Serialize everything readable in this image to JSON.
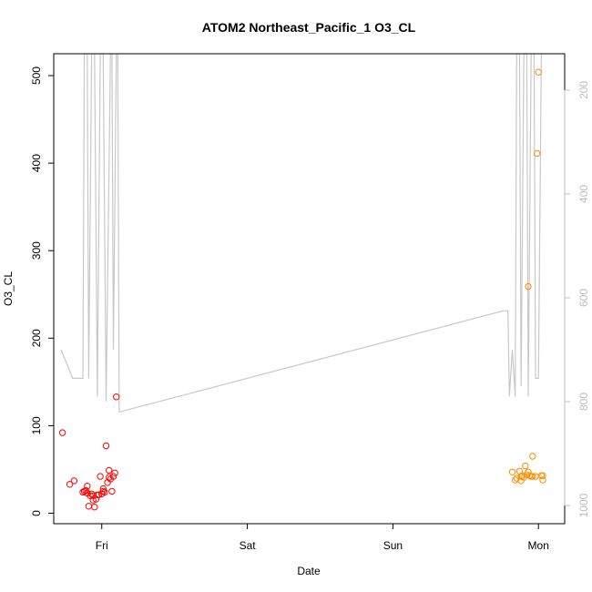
{
  "chart_data": {
    "type": "scatter",
    "title": "ATOM2 Northeast_Pacific_1 O3_CL",
    "xlabel": "Date",
    "ylabel": "O3_CL",
    "x_ticks": [
      "Fri",
      "Sat",
      "Sun",
      "Mon"
    ],
    "x_tick_days": [
      1,
      2,
      3,
      4
    ],
    "xlim": [
      0.67,
      4.18
    ],
    "ylim": [
      -12,
      525
    ],
    "y_ticks": [
      0,
      100,
      200,
      300,
      400,
      500
    ],
    "right_axis": {
      "label": "",
      "reversed": true,
      "lim": [
        130,
        1035
      ],
      "ticks": [
        200,
        400,
        600,
        800,
        1000
      ],
      "color": "#bdbdbd"
    },
    "grid": false,
    "series": [
      {
        "color": "#ff0000",
        "points": [
          [
            0.73,
            92
          ],
          [
            0.78,
            33
          ],
          [
            0.81,
            37
          ],
          [
            0.87,
            24
          ],
          [
            0.88,
            25
          ],
          [
            0.89,
            26
          ],
          [
            0.9,
            23
          ],
          [
            0.9,
            31
          ],
          [
            0.91,
            8
          ],
          [
            0.92,
            20
          ],
          [
            0.93,
            22
          ],
          [
            0.94,
            15
          ],
          [
            0.94,
            20
          ],
          [
            0.95,
            7
          ],
          [
            0.96,
            16
          ],
          [
            0.97,
            21
          ],
          [
            0.98,
            21
          ],
          [
            0.99,
            42
          ],
          [
            1.0,
            22
          ],
          [
            1.01,
            25
          ],
          [
            1.01,
            28
          ],
          [
            1.02,
            24
          ],
          [
            1.03,
            77
          ],
          [
            1.04,
            35
          ],
          [
            1.05,
            41
          ],
          [
            1.05,
            49
          ],
          [
            1.06,
            39
          ],
          [
            1.07,
            25
          ],
          [
            1.08,
            42
          ],
          [
            1.09,
            46
          ],
          [
            1.1,
            133
          ]
        ]
      },
      {
        "color": "#ff8c00",
        "points": [
          [
            3.82,
            47
          ],
          [
            3.84,
            38
          ],
          [
            3.85,
            40
          ],
          [
            3.87,
            48
          ],
          [
            3.88,
            37
          ],
          [
            3.88,
            42
          ],
          [
            3.89,
            43
          ],
          [
            3.9,
            41
          ],
          [
            3.91,
            54
          ],
          [
            3.92,
            44
          ],
          [
            3.93,
            47
          ],
          [
            3.93,
            259
          ],
          [
            3.94,
            43
          ],
          [
            3.95,
            42
          ],
          [
            3.96,
            65
          ],
          [
            3.96,
            42
          ],
          [
            3.98,
            42
          ],
          [
            3.99,
            411
          ],
          [
            4.0,
            504
          ],
          [
            4.02,
            43
          ],
          [
            4.03,
            38
          ],
          [
            4.03,
            43
          ]
        ]
      }
    ],
    "line_series": {
      "color": "#c8c8c8",
      "axis": "right",
      "points": [
        [
          0.72,
          700
        ],
        [
          0.8,
          755
        ],
        [
          0.86,
          755
        ],
        [
          0.87,
          755
        ],
        [
          0.88,
          130
        ],
        [
          0.9,
          130
        ],
        [
          0.91,
          755
        ],
        [
          0.93,
          130
        ],
        [
          0.95,
          130
        ],
        [
          0.97,
          790
        ],
        [
          0.99,
          130
        ],
        [
          1.01,
          130
        ],
        [
          1.03,
          800
        ],
        [
          1.06,
          130
        ],
        [
          1.07,
          130
        ],
        [
          1.08,
          700
        ],
        [
          1.1,
          130
        ],
        [
          1.11,
          130
        ],
        [
          1.12,
          820
        ],
        [
          3.76,
          625
        ],
        [
          3.79,
          625
        ],
        [
          3.8,
          790
        ],
        [
          3.82,
          700
        ],
        [
          3.84,
          790
        ],
        [
          3.85,
          130
        ],
        [
          3.87,
          130
        ],
        [
          3.88,
          770
        ],
        [
          3.9,
          130
        ],
        [
          3.92,
          130
        ],
        [
          3.93,
          790
        ],
        [
          3.95,
          130
        ],
        [
          3.97,
          130
        ],
        [
          3.98,
          755
        ],
        [
          4.0,
          755
        ],
        [
          4.02,
          130
        ],
        [
          4.05,
          130
        ]
      ]
    }
  }
}
